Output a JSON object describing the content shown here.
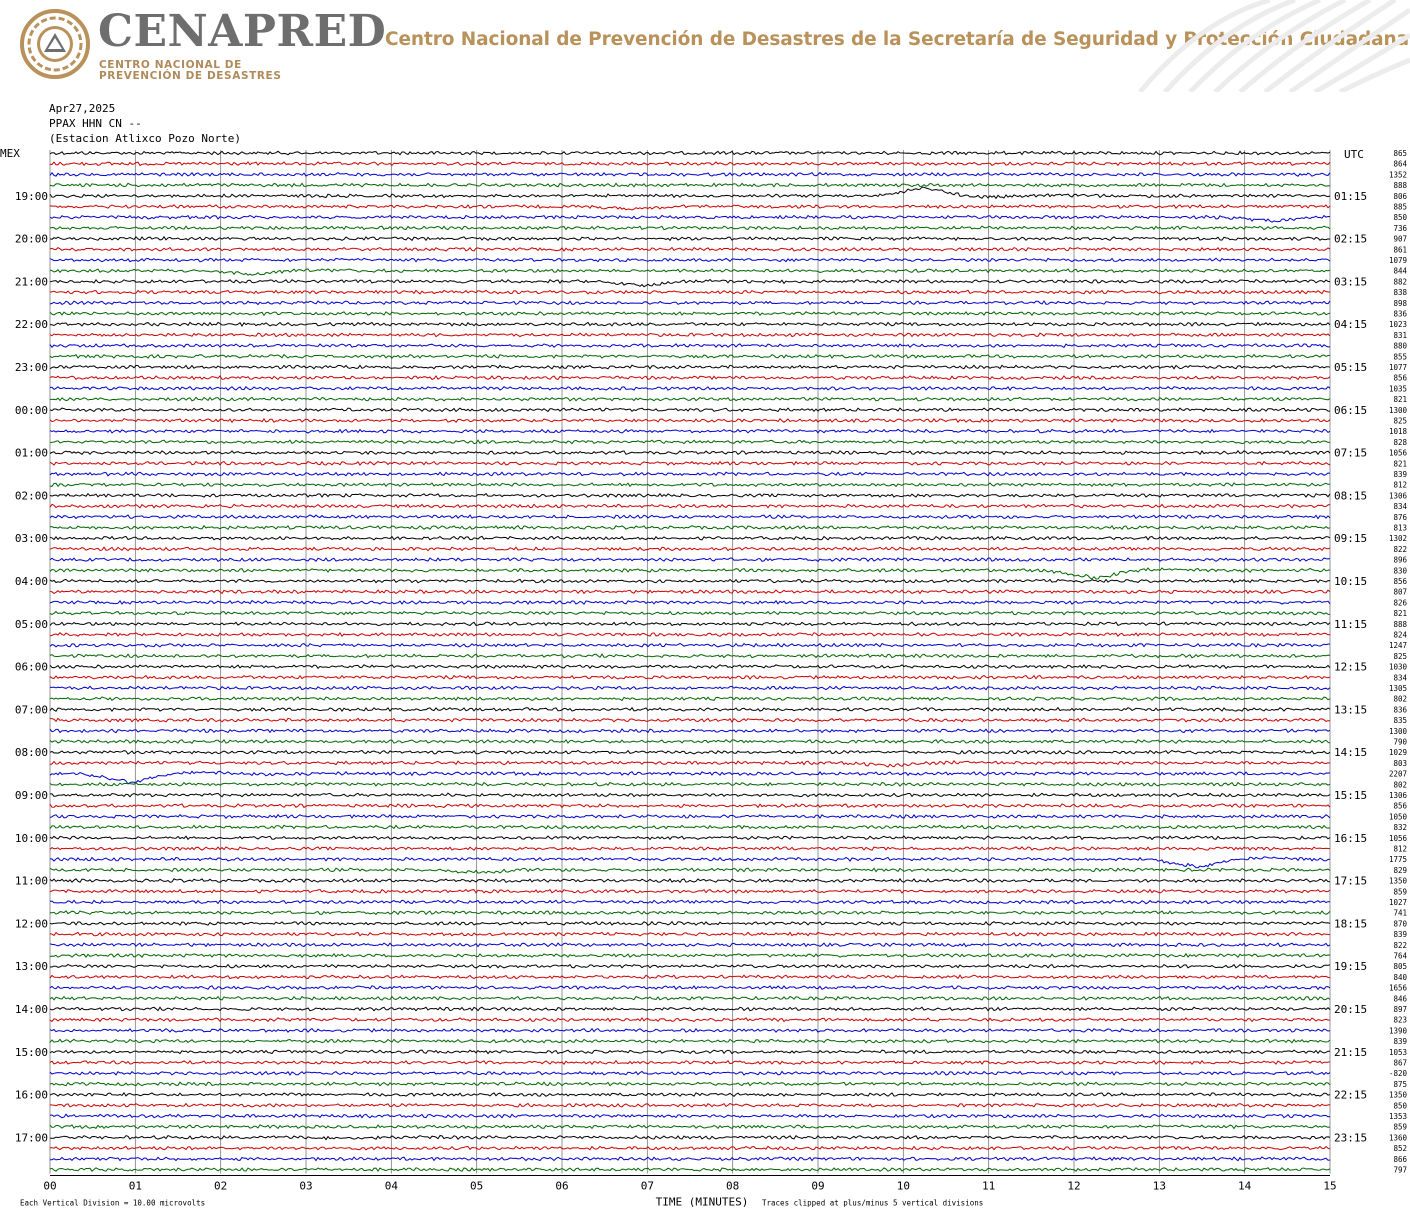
{
  "header": {
    "brand": "CENAPRED",
    "brand_sub_line1": "CENTRO NACIONAL DE",
    "brand_sub_line2": "PREVENCIÓN DE DESASTRES",
    "tagline": "Centro Nacional de Prevención de Desastres de la Secretaría de Seguridad y Protección Ciudadana",
    "logo_icon": "cenapred-seal-icon",
    "decor_icon": "greca-pattern-icon",
    "brand_color": "#b9915b"
  },
  "station": {
    "date": "Apr27,2025",
    "channel": "PPAX HHN CN --",
    "name": "(Estacion Atlixco Pozo Norte)"
  },
  "chart_data": {
    "type": "line",
    "title": "",
    "xlabel": "TIME (MINUTES)",
    "xlim": [
      0,
      15
    ],
    "x_ticks": [
      "00",
      "01",
      "02",
      "03",
      "04",
      "05",
      "06",
      "07",
      "08",
      "09",
      "10",
      "11",
      "12",
      "13",
      "14",
      "15"
    ],
    "left_label": "MEX",
    "right_label": "UTC",
    "left_hour_labels": [
      "19:00",
      "20:00",
      "21:00",
      "22:00",
      "23:00",
      "00:00",
      "01:00",
      "02:00",
      "03:00",
      "04:00",
      "05:00",
      "06:00",
      "07:00",
      "08:00",
      "09:00",
      "10:00",
      "11:00",
      "12:00",
      "13:00",
      "14:00",
      "15:00",
      "16:00",
      "17:00"
    ],
    "right_hour_labels": [
      "01:15",
      "02:15",
      "03:15",
      "04:15",
      "05:15",
      "06:15",
      "07:15",
      "08:15",
      "09:15",
      "10:15",
      "11:15",
      "12:15",
      "13:15",
      "14:15",
      "15:15",
      "16:15",
      "17:15",
      "18:15",
      "19:15",
      "20:15",
      "21:15",
      "22:15",
      "23:15"
    ],
    "trace_color_cycle": [
      "#000000",
      "#cc0000",
      "#0000cc",
      "#006600"
    ],
    "trace_count": 96,
    "trace_baselines": [
      "865",
      "864",
      "1352",
      "888",
      "806",
      "885",
      "850",
      "736",
      "907",
      "861",
      "1079",
      "844",
      "882",
      "838",
      "898",
      "836",
      "1023",
      "831",
      "880",
      "855",
      "1077",
      "856",
      "1035",
      "821",
      "1300",
      "825",
      "1018",
      "828",
      "1056",
      "821",
      "839",
      "812",
      "1306",
      "834",
      "876",
      "813",
      "1302",
      "822",
      "896",
      "830",
      "856",
      "807",
      "826",
      "821",
      "888",
      "824",
      "1247",
      "825",
      "1030",
      "834",
      "1305",
      "802",
      "836",
      "835",
      "1300",
      "790",
      "1029",
      "803",
      "2207",
      "802",
      "1306",
      "856",
      "1050",
      "832",
      "1056",
      "812",
      "1775",
      "829",
      "1350",
      "859",
      "1027",
      "741",
      "870",
      "839",
      "822",
      "764",
      "805",
      "840",
      "1656",
      "846",
      "897",
      "823",
      "1390",
      "839",
      "1053",
      "867",
      "-820",
      "875",
      "1350",
      "850",
      "1353",
      "859",
      "1360",
      "852",
      "866",
      "797"
    ],
    "notes_left": "Each Vertical Division =   10.00 microvolts",
    "notes_right": "Traces clipped at plus/minus 5 vertical divisions",
    "events": [
      {
        "trace": 4,
        "minute": 10.2,
        "amplitude": -6
      },
      {
        "trace": 5,
        "minute": 6.8,
        "amplitude": 2
      },
      {
        "trace": 6,
        "minute": 14.3,
        "amplitude": 3
      },
      {
        "trace": 11,
        "minute": 2.3,
        "amplitude": 3
      },
      {
        "trace": 12,
        "minute": 6.9,
        "amplitude": 3
      },
      {
        "trace": 39,
        "minute": 12.2,
        "amplitude": 6
      },
      {
        "trace": 58,
        "minute": 0.9,
        "amplitude": 7
      },
      {
        "trace": 57,
        "minute": 9.8,
        "amplitude": 2
      },
      {
        "trace": 66,
        "minute": 13.4,
        "amplitude": 6
      },
      {
        "trace": 67,
        "minute": 5.0,
        "amplitude": 2
      },
      {
        "trace": 92,
        "minute": 3.5,
        "amplitude": 1
      }
    ]
  }
}
